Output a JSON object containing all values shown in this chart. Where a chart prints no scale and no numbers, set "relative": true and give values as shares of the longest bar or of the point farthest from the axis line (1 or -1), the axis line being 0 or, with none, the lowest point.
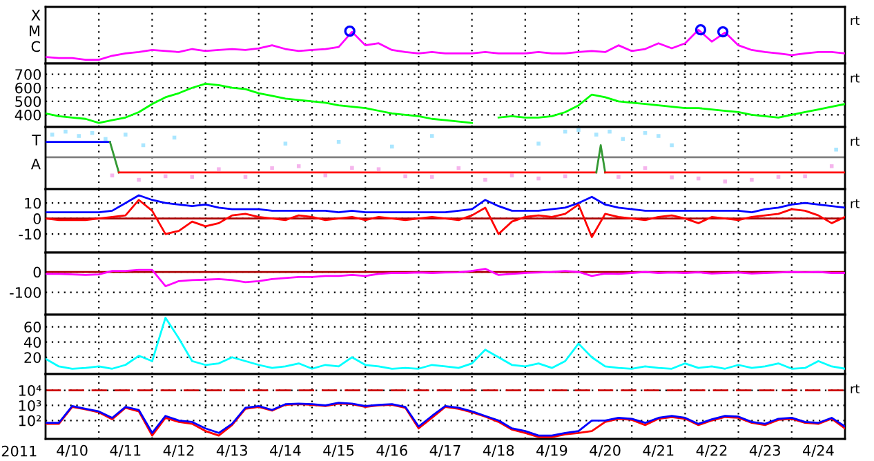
{
  "chart_data": [
    {
      "type": "line",
      "relative": true,
      "xlim": [
        "2011-04-10T00:00",
        "2011-04-25T00:00"
      ],
      "tick_labels": false,
      "grid": "x",
      "annotations": [
        "rt",
        "X",
        "M",
        "C"
      ],
      "xticks": [
        {
          "value": "2011-04-11",
          "label": null
        },
        {
          "value": "2011-04-12",
          "label": null
        },
        {
          "value": "2011-04-13",
          "label": null
        },
        {
          "value": "2011-04-14",
          "label": null
        },
        {
          "value": "2011-04-15",
          "label": null
        },
        {
          "value": "2011-04-16",
          "label": null
        },
        {
          "value": "2011-04-17",
          "label": null
        },
        {
          "value": "2011-04-18",
          "label": null
        },
        {
          "value": "2011-04-19",
          "label": null
        },
        {
          "value": "2011-04-20",
          "label": null
        },
        {
          "value": "2011-04-21",
          "label": null
        },
        {
          "value": "2011-04-22",
          "label": null
        },
        {
          "value": "2011-04-23",
          "label": null
        },
        {
          "value": "2011-04-24",
          "label": null
        }
      ],
      "x": [
        "2011-04-10T00:00",
        "2011-04-10T06:00",
        "2011-04-10T12:00",
        "2011-04-10T18:00",
        "2011-04-11T00:00",
        "2011-04-11T06:00",
        "2011-04-11T12:00",
        "2011-04-11T18:00",
        "2011-04-12T00:00",
        "2011-04-12T06:00",
        "2011-04-12T12:00",
        "2011-04-12T18:00",
        "2011-04-13T00:00",
        "2011-04-13T06:00",
        "2011-04-13T12:00",
        "2011-04-13T18:00",
        "2011-04-14T00:00",
        "2011-04-14T06:00",
        "2011-04-14T12:00",
        "2011-04-14T18:00",
        "2011-04-15T00:00",
        "2011-04-15T06:00",
        "2011-04-15T12:00",
        "2011-04-15T18:00",
        "2011-04-16T00:00",
        "2011-04-16T06:00",
        "2011-04-16T12:00",
        "2011-04-16T18:00",
        "2011-04-17T00:00",
        "2011-04-17T06:00",
        "2011-04-17T12:00",
        "2011-04-17T18:00",
        "2011-04-18T00:00",
        "2011-04-18T06:00",
        "2011-04-18T12:00",
        "2011-04-18T18:00",
        "2011-04-19T00:00",
        "2011-04-19T06:00",
        "2011-04-19T12:00",
        "2011-04-19T18:00",
        "2011-04-20T00:00",
        "2011-04-20T06:00",
        "2011-04-20T12:00",
        "2011-04-20T18:00",
        "2011-04-21T00:00",
        "2011-04-21T06:00",
        "2011-04-21T12:00",
        "2011-04-21T18:00",
        "2011-04-22T00:00",
        "2011-04-22T06:00",
        "2011-04-22T12:00",
        "2011-04-22T18:00",
        "2011-04-23T00:00",
        "2011-04-23T06:00",
        "2011-04-23T12:00",
        "2011-04-23T18:00",
        "2011-04-24T00:00",
        "2011-04-24T06:00",
        "2011-04-24T12:00",
        "2011-04-24T18:00",
        "2011-04-25T00:00"
      ],
      "series": [
        {
          "color": "#ff00ff",
          "values": [
            0.19,
            0.16,
            0.16,
            0.11,
            0.11,
            0.23,
            0.3,
            0.34,
            0.4,
            0.37,
            0.34,
            0.43,
            0.37,
            0.4,
            0.43,
            0.4,
            0.45,
            0.54,
            0.43,
            0.37,
            0.4,
            0.43,
            0.49,
            0.94,
            0.54,
            0.6,
            0.4,
            0.34,
            0.3,
            0.34,
            0.3,
            0.3,
            0.3,
            0.34,
            0.3,
            0.3,
            0.3,
            0.34,
            0.3,
            0.3,
            0.34,
            0.37,
            0.34,
            0.54,
            0.37,
            0.43,
            0.6,
            0.45,
            0.6,
            1,
            0.65,
            0.92,
            0.54,
            0.4,
            0.34,
            0.3,
            0.25,
            0.3,
            0.34,
            0.34,
            0.3
          ]
        },
        {
          "type": "scatter",
          "marker": "circle",
          "color": "#0000ff",
          "x": [
            "2011-04-15T17:00",
            "2011-04-22T07:00",
            "2011-04-22T17:00"
          ],
          "values": [
            0.96,
            1,
            0.94
          ]
        }
      ]
    },
    {
      "type": "line",
      "ylim": [
        310,
        780
      ],
      "yticks": [
        400,
        500,
        600,
        700
      ],
      "xlim": [
        "2011-04-10T00:00",
        "2011-04-25T00:00"
      ],
      "tick_labels": "y",
      "grid": true,
      "annotations": [
        "rt"
      ],
      "xticks": [
        {
          "value": "2011-04-11",
          "label": null
        },
        {
          "value": "2011-04-12",
          "label": null
        },
        {
          "value": "2011-04-13",
          "label": null
        },
        {
          "value": "2011-04-14",
          "label": null
        },
        {
          "value": "2011-04-15",
          "label": null
        },
        {
          "value": "2011-04-16",
          "label": null
        },
        {
          "value": "2011-04-17",
          "label": null
        },
        {
          "value": "2011-04-18",
          "label": null
        },
        {
          "value": "2011-04-19",
          "label": null
        },
        {
          "value": "2011-04-20",
          "label": null
        },
        {
          "value": "2011-04-21",
          "label": null
        },
        {
          "value": "2011-04-22",
          "label": null
        },
        {
          "value": "2011-04-23",
          "label": null
        },
        {
          "value": "2011-04-24",
          "label": null
        }
      ],
      "x": [
        "2011-04-10T00:00",
        "2011-04-10T06:00",
        "2011-04-10T12:00",
        "2011-04-10T18:00",
        "2011-04-11T00:00",
        "2011-04-11T06:00",
        "2011-04-11T12:00",
        "2011-04-11T18:00",
        "2011-04-12T00:00",
        "2011-04-12T06:00",
        "2011-04-12T12:00",
        "2011-04-12T18:00",
        "2011-04-13T00:00",
        "2011-04-13T06:00",
        "2011-04-13T12:00",
        "2011-04-13T18:00",
        "2011-04-14T00:00",
        "2011-04-14T06:00",
        "2011-04-14T12:00",
        "2011-04-14T18:00",
        "2011-04-15T00:00",
        "2011-04-15T06:00",
        "2011-04-15T12:00",
        "2011-04-15T18:00",
        "2011-04-16T00:00",
        "2011-04-16T06:00",
        "2011-04-16T12:00",
        "2011-04-16T18:00",
        "2011-04-17T00:00",
        "2011-04-17T06:00",
        "2011-04-17T12:00",
        "2011-04-17T18:00",
        "2011-04-18T00:00",
        "2011-04-18T06:00",
        "2011-04-18T12:00",
        "2011-04-18T18:00",
        "2011-04-19T00:00",
        "2011-04-19T06:00",
        "2011-04-19T12:00",
        "2011-04-19T18:00",
        "2011-04-20T00:00",
        "2011-04-20T06:00",
        "2011-04-20T12:00",
        "2011-04-20T18:00",
        "2011-04-21T00:00",
        "2011-04-21T06:00",
        "2011-04-21T12:00",
        "2011-04-21T18:00",
        "2011-04-22T00:00",
        "2011-04-22T06:00",
        "2011-04-22T12:00",
        "2011-04-22T18:00",
        "2011-04-23T00:00",
        "2011-04-23T06:00",
        "2011-04-23T12:00",
        "2011-04-23T18:00",
        "2011-04-24T00:00",
        "2011-04-24T06:00",
        "2011-04-24T12:00",
        "2011-04-24T18:00",
        "2011-04-25T00:00"
      ],
      "series": [
        {
          "color": "#00ff00",
          "values": [
            410,
            390,
            380,
            370,
            340,
            360,
            380,
            420,
            480,
            530,
            560,
            600,
            630,
            620,
            600,
            590,
            560,
            540,
            520,
            510,
            500,
            490,
            470,
            460,
            450,
            430,
            410,
            400,
            390,
            370,
            360,
            350,
            340,
            null,
            380,
            390,
            380,
            380,
            390,
            420,
            470,
            550,
            530,
            500,
            490,
            480,
            470,
            460,
            450,
            450,
            440,
            430,
            420,
            400,
            390,
            380,
            400,
            420,
            440,
            460,
            480
          ]
        }
      ]
    },
    {
      "type": "line",
      "relative": true,
      "xlim": [
        "2011-04-10T00:00",
        "2011-04-25T00:00"
      ],
      "tick_labels": false,
      "grid": "x",
      "annotations": [
        "rt",
        "T",
        "A"
      ],
      "ref_lines": [
        {
          "axis": "y",
          "value": 0,
          "color": "#808080",
          "line_style": "solid"
        }
      ],
      "xticks": [
        {
          "value": "2011-04-11",
          "label": null
        },
        {
          "value": "2011-04-12",
          "label": null
        },
        {
          "value": "2011-04-13",
          "label": null
        },
        {
          "value": "2011-04-14",
          "label": null
        },
        {
          "value": "2011-04-15",
          "label": null
        },
        {
          "value": "2011-04-16",
          "label": null
        },
        {
          "value": "2011-04-17",
          "label": null
        },
        {
          "value": "2011-04-18",
          "label": null
        },
        {
          "value": "2011-04-19",
          "label": null
        },
        {
          "value": "2011-04-20",
          "label": null
        },
        {
          "value": "2011-04-21",
          "label": null
        },
        {
          "value": "2011-04-22",
          "label": null
        },
        {
          "value": "2011-04-23",
          "label": null
        },
        {
          "value": "2011-04-24",
          "label": null
        }
      ],
      "series": [
        {
          "type": "scatter",
          "marker": "square",
          "color": "#aae6ff",
          "x": [
            "2011-04-10T03:00",
            "2011-04-10T09:00",
            "2011-04-10T15:00",
            "2011-04-10T21:00",
            "2011-04-11T03:00",
            "2011-04-11T12:00",
            "2011-04-11T20:00",
            "2011-04-12T10:00",
            "2011-04-14T12:00",
            "2011-04-15T12:00",
            "2011-04-16T12:00",
            "2011-04-17T06:00",
            "2011-04-19T06:00",
            "2011-04-19T18:00",
            "2011-04-20T00:00",
            "2011-04-20T08:00",
            "2011-04-20T14:00",
            "2011-04-20T20:00",
            "2011-04-21T06:00",
            "2011-04-21T12:00",
            "2011-04-21T18:00",
            "2011-04-24T20:00"
          ],
          "values": [
            0.83,
            0.94,
            0.78,
            0.89,
            0.67,
            0.83,
            0.44,
            0.72,
            0.5,
            0.56,
            0.39,
            0.78,
            0.5,
            0.94,
            1,
            0.83,
            0.94,
            0.67,
            0.89,
            0.78,
            0.44,
            0.28
          ]
        },
        {
          "type": "scatter",
          "marker": "square",
          "color": "#f5b4ec",
          "x": [
            "2011-04-11T06:00",
            "2011-04-11T18:00",
            "2011-04-12T06:00",
            "2011-04-12T18:00",
            "2011-04-13T06:00",
            "2011-04-13T18:00",
            "2011-04-14T06:00",
            "2011-04-14T18:00",
            "2011-04-15T06:00",
            "2011-04-15T18:00",
            "2011-04-16T06:00",
            "2011-04-16T18:00",
            "2011-04-17T06:00",
            "2011-04-17T18:00",
            "2011-04-18T06:00",
            "2011-04-18T18:00",
            "2011-04-19T06:00",
            "2011-04-19T18:00",
            "2011-04-20T18:00",
            "2011-04-21T06:00",
            "2011-04-21T18:00",
            "2011-04-22T06:00",
            "2011-04-22T18:00",
            "2011-04-23T06:00",
            "2011-04-23T18:00",
            "2011-04-24T06:00",
            "2011-04-24T18:00"
          ],
          "values": [
            -0.67,
            -0.83,
            -0.7,
            -0.72,
            -0.44,
            -0.72,
            -0.4,
            -0.33,
            -0.67,
            -0.39,
            -0.44,
            -0.7,
            -0.72,
            -0.4,
            -0.83,
            -0.67,
            -0.78,
            -0.7,
            -0.72,
            -0.4,
            -0.74,
            -0.78,
            -0.89,
            -0.83,
            -0.72,
            -0.7,
            -0.33
          ]
        },
        {
          "color": "#0000ff",
          "x": [
            "2011-04-10T00:00",
            "2011-04-11T05:00"
          ],
          "values": [
            0.56,
            0.56
          ]
        },
        {
          "color": "#339933",
          "x": [
            "2011-04-11T05:00",
            "2011-04-11T09:00"
          ],
          "values": [
            0.56,
            -0.56
          ]
        },
        {
          "color": "#ff0000",
          "x": [
            "2011-04-11T09:00",
            "2011-04-20T08:00"
          ],
          "values": [
            -0.56,
            -0.56
          ]
        },
        {
          "color": "#339933",
          "x": [
            "2011-04-20T08:00",
            "2011-04-20T10:00",
            "2011-04-20T12:00"
          ],
          "values": [
            -0.56,
            0.44,
            -0.56
          ]
        },
        {
          "color": "#ff0000",
          "x": [
            "2011-04-20T12:00",
            "2011-04-25T00:00"
          ],
          "values": [
            -0.56,
            -0.56
          ]
        }
      ]
    },
    {
      "type": "line",
      "ylim": [
        -22,
        19
      ],
      "yticks": [
        10,
        0,
        -10
      ],
      "xlim": [
        "2011-04-10T00:00",
        "2011-04-25T00:00"
      ],
      "tick_labels": "y",
      "grid": true,
      "annotations": [
        "rt"
      ],
      "ref_lines": [
        {
          "axis": "y",
          "value": 0,
          "color": "#aa0000",
          "line_style": "solid"
        }
      ],
      "xticks": [
        {
          "value": "2011-04-11",
          "label": null
        },
        {
          "value": "2011-04-12",
          "label": null
        },
        {
          "value": "2011-04-13",
          "label": null
        },
        {
          "value": "2011-04-14",
          "label": null
        },
        {
          "value": "2011-04-15",
          "label": null
        },
        {
          "value": "2011-04-16",
          "label": null
        },
        {
          "value": "2011-04-17",
          "label": null
        },
        {
          "value": "2011-04-18",
          "label": null
        },
        {
          "value": "2011-04-19",
          "label": null
        },
        {
          "value": "2011-04-20",
          "label": null
        },
        {
          "value": "2011-04-21",
          "label": null
        },
        {
          "value": "2011-04-22",
          "label": null
        },
        {
          "value": "2011-04-23",
          "label": null
        },
        {
          "value": "2011-04-24",
          "label": null
        }
      ],
      "x": [
        "2011-04-10T00:00",
        "2011-04-10T06:00",
        "2011-04-10T12:00",
        "2011-04-10T18:00",
        "2011-04-11T00:00",
        "2011-04-11T06:00",
        "2011-04-11T12:00",
        "2011-04-11T18:00",
        "2011-04-12T00:00",
        "2011-04-12T06:00",
        "2011-04-12T12:00",
        "2011-04-12T18:00",
        "2011-04-13T00:00",
        "2011-04-13T06:00",
        "2011-04-13T12:00",
        "2011-04-13T18:00",
        "2011-04-14T00:00",
        "2011-04-14T06:00",
        "2011-04-14T12:00",
        "2011-04-14T18:00",
        "2011-04-15T00:00",
        "2011-04-15T06:00",
        "2011-04-15T12:00",
        "2011-04-15T18:00",
        "2011-04-16T00:00",
        "2011-04-16T06:00",
        "2011-04-16T12:00",
        "2011-04-16T18:00",
        "2011-04-17T00:00",
        "2011-04-17T06:00",
        "2011-04-17T12:00",
        "2011-04-17T18:00",
        "2011-04-18T00:00",
        "2011-04-18T06:00",
        "2011-04-18T12:00",
        "2011-04-18T18:00",
        "2011-04-19T00:00",
        "2011-04-19T06:00",
        "2011-04-19T12:00",
        "2011-04-19T18:00",
        "2011-04-20T00:00",
        "2011-04-20T06:00",
        "2011-04-20T12:00",
        "2011-04-20T18:00",
        "2011-04-21T00:00",
        "2011-04-21T06:00",
        "2011-04-21T12:00",
        "2011-04-21T18:00",
        "2011-04-22T00:00",
        "2011-04-22T06:00",
        "2011-04-22T12:00",
        "2011-04-22T18:00",
        "2011-04-23T00:00",
        "2011-04-23T06:00",
        "2011-04-23T12:00",
        "2011-04-23T18:00",
        "2011-04-24T00:00",
        "2011-04-24T06:00",
        "2011-04-24T12:00",
        "2011-04-24T18:00",
        "2011-04-25T00:00"
      ],
      "series": [
        {
          "color": "#0000ff",
          "values": [
            4,
            4,
            4,
            4,
            4,
            5,
            10,
            15,
            12,
            10,
            9,
            8,
            9,
            7,
            6,
            6,
            6,
            5,
            5,
            5,
            5,
            5,
            4,
            5,
            4,
            4,
            4,
            4,
            4,
            4,
            4,
            5,
            6,
            12,
            8,
            5,
            5,
            5,
            6,
            7,
            10,
            14,
            9,
            7,
            6,
            5,
            5,
            5,
            5,
            5,
            5,
            5,
            5,
            4,
            6,
            7,
            9,
            10,
            9,
            8,
            7
          ]
        },
        {
          "color": "#ff0000",
          "values": [
            0,
            -1,
            -1,
            -1,
            0,
            1,
            2,
            12,
            5,
            -10,
            -8,
            -2,
            -5,
            -3,
            2,
            3,
            1,
            0,
            -1,
            2,
            1,
            -1,
            0,
            1,
            -1,
            1,
            0,
            -1,
            0,
            1,
            0,
            -1,
            2,
            7,
            -10,
            -2,
            1,
            2,
            1,
            3,
            9,
            -12,
            3,
            1,
            0,
            -1,
            1,
            2,
            0,
            -3,
            1,
            0,
            -1,
            1,
            2,
            3,
            6,
            5,
            2,
            -3,
            1
          ]
        }
      ]
    },
    {
      "type": "line",
      "ylim": [
        -210,
        95
      ],
      "yticks": [
        0,
        -100
      ],
      "xlim": [
        "2011-04-10T00:00",
        "2011-04-25T00:00"
      ],
      "tick_labels": "y",
      "grid": true,
      "ref_lines": [
        {
          "axis": "y",
          "value": 0,
          "color": "#aa0000",
          "line_style": "solid"
        }
      ],
      "xticks": [
        {
          "value": "2011-04-11",
          "label": null
        },
        {
          "value": "2011-04-12",
          "label": null
        },
        {
          "value": "2011-04-13",
          "label": null
        },
        {
          "value": "2011-04-14",
          "label": null
        },
        {
          "value": "2011-04-15",
          "label": null
        },
        {
          "value": "2011-04-16",
          "label": null
        },
        {
          "value": "2011-04-17",
          "label": null
        },
        {
          "value": "2011-04-18",
          "label": null
        },
        {
          "value": "2011-04-19",
          "label": null
        },
        {
          "value": "2011-04-20",
          "label": null
        },
        {
          "value": "2011-04-21",
          "label": null
        },
        {
          "value": "2011-04-22",
          "label": null
        },
        {
          "value": "2011-04-23",
          "label": null
        },
        {
          "value": "2011-04-24",
          "label": null
        }
      ],
      "x": [
        "2011-04-10T00:00",
        "2011-04-10T06:00",
        "2011-04-10T12:00",
        "2011-04-10T18:00",
        "2011-04-11T00:00",
        "2011-04-11T06:00",
        "2011-04-11T12:00",
        "2011-04-11T18:00",
        "2011-04-12T00:00",
        "2011-04-12T06:00",
        "2011-04-12T12:00",
        "2011-04-12T18:00",
        "2011-04-13T00:00",
        "2011-04-13T06:00",
        "2011-04-13T12:00",
        "2011-04-13T18:00",
        "2011-04-14T00:00",
        "2011-04-14T06:00",
        "2011-04-14T12:00",
        "2011-04-14T18:00",
        "2011-04-15T00:00",
        "2011-04-15T06:00",
        "2011-04-15T12:00",
        "2011-04-15T18:00",
        "2011-04-16T00:00",
        "2011-04-16T06:00",
        "2011-04-16T12:00",
        "2011-04-16T18:00",
        "2011-04-17T00:00",
        "2011-04-17T06:00",
        "2011-04-17T12:00",
        "2011-04-17T18:00",
        "2011-04-18T00:00",
        "2011-04-18T06:00",
        "2011-04-18T12:00",
        "2011-04-18T18:00",
        "2011-04-19T00:00",
        "2011-04-19T06:00",
        "2011-04-19T12:00",
        "2011-04-19T18:00",
        "2011-04-20T00:00",
        "2011-04-20T06:00",
        "2011-04-20T12:00",
        "2011-04-20T18:00",
        "2011-04-21T00:00",
        "2011-04-21T06:00",
        "2011-04-21T12:00",
        "2011-04-21T18:00",
        "2011-04-22T00:00",
        "2011-04-22T06:00",
        "2011-04-22T12:00",
        "2011-04-22T18:00",
        "2011-04-23T00:00",
        "2011-04-23T06:00",
        "2011-04-23T12:00",
        "2011-04-23T18:00",
        "2011-04-24T00:00",
        "2011-04-24T06:00",
        "2011-04-24T12:00",
        "2011-04-24T18:00",
        "2011-04-25T00:00"
      ],
      "series": [
        {
          "color": "#ff00ff",
          "values": [
            -10,
            -10,
            -12,
            -15,
            -12,
            5,
            5,
            10,
            10,
            -70,
            -45,
            -40,
            -38,
            -35,
            -40,
            -50,
            -45,
            -35,
            -30,
            -25,
            -25,
            -20,
            -20,
            -15,
            -20,
            -10,
            -5,
            -5,
            -3,
            -5,
            -3,
            -2,
            5,
            15,
            -15,
            -10,
            -5,
            -3,
            0,
            5,
            0,
            -20,
            -8,
            -10,
            -5,
            0,
            -5,
            -3,
            -5,
            -2,
            -8,
            -5,
            -3,
            -8,
            -5,
            -3,
            0,
            -2,
            0,
            -5,
            -5
          ]
        }
      ]
    },
    {
      "type": "line",
      "ylim": [
        -2,
        76
      ],
      "yticks": [
        20,
        40,
        60
      ],
      "xlim": [
        "2011-04-10T00:00",
        "2011-04-25T00:00"
      ],
      "tick_labels": "y",
      "grid": true,
      "xticks": [
        {
          "value": "2011-04-11",
          "label": null
        },
        {
          "value": "2011-04-12",
          "label": null
        },
        {
          "value": "2011-04-13",
          "label": null
        },
        {
          "value": "2011-04-14",
          "label": null
        },
        {
          "value": "2011-04-15",
          "label": null
        },
        {
          "value": "2011-04-16",
          "label": null
        },
        {
          "value": "2011-04-17",
          "label": null
        },
        {
          "value": "2011-04-18",
          "label": null
        },
        {
          "value": "2011-04-19",
          "label": null
        },
        {
          "value": "2011-04-20",
          "label": null
        },
        {
          "value": "2011-04-21",
          "label": null
        },
        {
          "value": "2011-04-22",
          "label": null
        },
        {
          "value": "2011-04-23",
          "label": null
        },
        {
          "value": "2011-04-24",
          "label": null
        }
      ],
      "x": [
        "2011-04-10T00:00",
        "2011-04-10T06:00",
        "2011-04-10T12:00",
        "2011-04-10T18:00",
        "2011-04-11T00:00",
        "2011-04-11T06:00",
        "2011-04-11T12:00",
        "2011-04-11T18:00",
        "2011-04-12T00:00",
        "2011-04-12T06:00",
        "2011-04-12T12:00",
        "2011-04-12T18:00",
        "2011-04-13T00:00",
        "2011-04-13T06:00",
        "2011-04-13T12:00",
        "2011-04-13T18:00",
        "2011-04-14T00:00",
        "2011-04-14T06:00",
        "2011-04-14T12:00",
        "2011-04-14T18:00",
        "2011-04-15T00:00",
        "2011-04-15T06:00",
        "2011-04-15T12:00",
        "2011-04-15T18:00",
        "2011-04-16T00:00",
        "2011-04-16T06:00",
        "2011-04-16T12:00",
        "2011-04-16T18:00",
        "2011-04-17T00:00",
        "2011-04-17T06:00",
        "2011-04-17T12:00",
        "2011-04-17T18:00",
        "2011-04-18T00:00",
        "2011-04-18T06:00",
        "2011-04-18T12:00",
        "2011-04-18T18:00",
        "2011-04-19T00:00",
        "2011-04-19T06:00",
        "2011-04-19T12:00",
        "2011-04-19T18:00",
        "2011-04-20T00:00",
        "2011-04-20T06:00",
        "2011-04-20T12:00",
        "2011-04-20T18:00",
        "2011-04-21T00:00",
        "2011-04-21T06:00",
        "2011-04-21T12:00",
        "2011-04-21T18:00",
        "2011-04-22T00:00",
        "2011-04-22T06:00",
        "2011-04-22T12:00",
        "2011-04-22T18:00",
        "2011-04-23T00:00",
        "2011-04-23T06:00",
        "2011-04-23T12:00",
        "2011-04-23T18:00",
        "2011-04-24T00:00",
        "2011-04-24T06:00",
        "2011-04-24T12:00",
        "2011-04-24T18:00",
        "2011-04-25T00:00"
      ],
      "series": [
        {
          "color": "#00ffff",
          "values": [
            18,
            8,
            5,
            6,
            8,
            5,
            10,
            22,
            15,
            72,
            45,
            15,
            10,
            12,
            20,
            15,
            10,
            6,
            8,
            12,
            5,
            10,
            8,
            20,
            10,
            8,
            5,
            6,
            5,
            10,
            8,
            6,
            12,
            30,
            20,
            10,
            8,
            12,
            6,
            15,
            38,
            20,
            8,
            6,
            5,
            8,
            6,
            5,
            12,
            6,
            8,
            5,
            10,
            6,
            8,
            12,
            5,
            6,
            15,
            8,
            5
          ]
        }
      ]
    },
    {
      "type": "line",
      "log": "y",
      "ylim": [
        6,
        120000
      ],
      "yticks": [
        {
          "value": 100,
          "label": "10²"
        },
        {
          "value": 1000,
          "label": "10³"
        },
        {
          "value": 10000,
          "label": "10⁴"
        }
      ],
      "xlim": [
        "2011-04-10T00:00",
        "2011-04-25T00:00"
      ],
      "grid": true,
      "xlabel": "2011",
      "annotations": [
        "rt"
      ],
      "ref_lines": [
        {
          "axis": "y",
          "value": 10000,
          "color": "#cc0000",
          "line_style": "dashed"
        }
      ],
      "xticks": [
        {
          "value": "2011-04-10T12:00",
          "label": "4/10"
        },
        {
          "value": "2011-04-11",
          "label": null
        },
        {
          "value": "2011-04-11T12:00",
          "label": "4/11"
        },
        {
          "value": "2011-04-12",
          "label": null
        },
        {
          "value": "2011-04-12T12:00",
          "label": "4/12"
        },
        {
          "value": "2011-04-13",
          "label": null
        },
        {
          "value": "2011-04-13T12:00",
          "label": "4/13"
        },
        {
          "value": "2011-04-14",
          "label": null
        },
        {
          "value": "2011-04-14T12:00",
          "label": "4/14"
        },
        {
          "value": "2011-04-15",
          "label": null
        },
        {
          "value": "2011-04-15T12:00",
          "label": "4/15"
        },
        {
          "value": "2011-04-16",
          "label": null
        },
        {
          "value": "2011-04-16T12:00",
          "label": "4/16"
        },
        {
          "value": "2011-04-17",
          "label": null
        },
        {
          "value": "2011-04-17T12:00",
          "label": "4/17"
        },
        {
          "value": "2011-04-18",
          "label": null
        },
        {
          "value": "2011-04-18T12:00",
          "label": "4/18"
        },
        {
          "value": "2011-04-19",
          "label": null
        },
        {
          "value": "2011-04-19T12:00",
          "label": "4/19"
        },
        {
          "value": "2011-04-20",
          "label": null
        },
        {
          "value": "2011-04-20T12:00",
          "label": "4/20"
        },
        {
          "value": "2011-04-21",
          "label": null
        },
        {
          "value": "2011-04-21T12:00",
          "label": "4/21"
        },
        {
          "value": "2011-04-22",
          "label": null
        },
        {
          "value": "2011-04-22T12:00",
          "label": "4/22"
        },
        {
          "value": "2011-04-23",
          "label": null
        },
        {
          "value": "2011-04-23T12:00",
          "label": "4/23"
        },
        {
          "value": "2011-04-24",
          "label": null
        },
        {
          "value": "2011-04-24T12:00",
          "label": "4/24"
        }
      ],
      "x": [
        "2011-04-10T00:00",
        "2011-04-10T06:00",
        "2011-04-10T12:00",
        "2011-04-10T18:00",
        "2011-04-11T00:00",
        "2011-04-11T06:00",
        "2011-04-11T12:00",
        "2011-04-11T18:00",
        "2011-04-12T00:00",
        "2011-04-12T06:00",
        "2011-04-12T12:00",
        "2011-04-12T18:00",
        "2011-04-13T00:00",
        "2011-04-13T06:00",
        "2011-04-13T12:00",
        "2011-04-13T18:00",
        "2011-04-14T00:00",
        "2011-04-14T06:00",
        "2011-04-14T12:00",
        "2011-04-14T18:00",
        "2011-04-15T00:00",
        "2011-04-15T06:00",
        "2011-04-15T12:00",
        "2011-04-15T18:00",
        "2011-04-16T00:00",
        "2011-04-16T06:00",
        "2011-04-16T12:00",
        "2011-04-16T18:00",
        "2011-04-17T00:00",
        "2011-04-17T06:00",
        "2011-04-17T12:00",
        "2011-04-17T18:00",
        "2011-04-18T00:00",
        "2011-04-18T06:00",
        "2011-04-18T12:00",
        "2011-04-18T18:00",
        "2011-04-19T00:00",
        "2011-04-19T06:00",
        "2011-04-19T12:00",
        "2011-04-19T18:00",
        "2011-04-20T00:00",
        "2011-04-20T06:00",
        "2011-04-20T12:00",
        "2011-04-20T18:00",
        "2011-04-21T00:00",
        "2011-04-21T06:00",
        "2011-04-21T12:00",
        "2011-04-21T18:00",
        "2011-04-22T00:00",
        "2011-04-22T06:00",
        "2011-04-22T12:00",
        "2011-04-22T18:00",
        "2011-04-23T00:00",
        "2011-04-23T06:00",
        "2011-04-23T12:00",
        "2011-04-23T18:00",
        "2011-04-24T00:00",
        "2011-04-24T06:00",
        "2011-04-24T12:00",
        "2011-04-24T18:00",
        "2011-04-25T00:00"
      ],
      "series": [
        {
          "color": "#ff0000",
          "values": [
            60,
            60,
            800,
            550,
            350,
            120,
            700,
            400,
            10,
            150,
            80,
            60,
            20,
            10,
            50,
            600,
            800,
            450,
            1100,
            1200,
            1100,
            900,
            1300,
            1200,
            800,
            1000,
            1100,
            700,
            30,
            150,
            800,
            600,
            350,
            180,
            80,
            25,
            15,
            8,
            8,
            12,
            15,
            20,
            80,
            130,
            110,
            50,
            130,
            170,
            130,
            50,
            100,
            170,
            150,
            70,
            50,
            110,
            130,
            70,
            60,
            130,
            30
          ]
        },
        {
          "color": "#0000ff",
          "values": [
            70,
            70,
            900,
            600,
            400,
            150,
            800,
            500,
            15,
            200,
            100,
            80,
            30,
            15,
            60,
            700,
            900,
            500,
            1200,
            1300,
            1200,
            1000,
            1500,
            1300,
            900,
            1100,
            1200,
            800,
            40,
            200,
            900,
            700,
            400,
            200,
            100,
            30,
            20,
            10,
            10,
            15,
            20,
            100,
            100,
            150,
            130,
            70,
            150,
            200,
            150,
            60,
            120,
            200,
            180,
            80,
            60,
            130,
            150,
            80,
            70,
            150,
            40
          ]
        }
      ]
    }
  ]
}
